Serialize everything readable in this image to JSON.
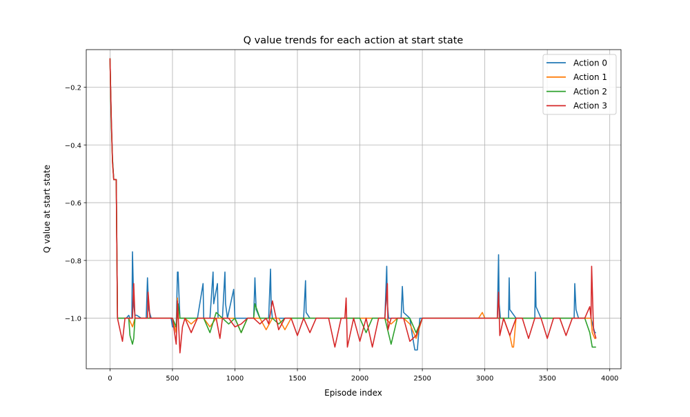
{
  "chart_data": {
    "type": "line",
    "title": "Q value trends for each action at start state",
    "xlabel": "Episode index",
    "ylabel": "Q value at start state",
    "xlim": [
      -190,
      4090
    ],
    "ylim": [
      -1.175,
      -0.07
    ],
    "xticks": [
      0,
      500,
      1000,
      1500,
      2000,
      2500,
      3000,
      3500,
      4000
    ],
    "xtick_labels": [
      "0",
      "500",
      "1000",
      "1500",
      "2000",
      "2500",
      "3000",
      "3500",
      "4000"
    ],
    "yticks": [
      -0.2,
      -0.4,
      -0.6,
      -0.8,
      -1.0
    ],
    "ytick_labels": [
      "−0.2",
      "−0.4",
      "−0.6",
      "−0.8",
      "−1.0"
    ],
    "grid": true,
    "legend_position": "top-right",
    "series": [
      {
        "name": "Action 0",
        "color": "#1f77b4",
        "x": [
          0,
          10,
          20,
          30,
          40,
          50,
          60,
          100,
          130,
          150,
          160,
          175,
          180,
          190,
          200,
          215,
          250,
          290,
          300,
          310,
          330,
          400,
          450,
          490,
          500,
          530,
          540,
          545,
          555,
          560,
          600,
          650,
          700,
          745,
          750,
          800,
          825,
          830,
          860,
          865,
          900,
          920,
          925,
          940,
          990,
          995,
          1000,
          1050,
          1100,
          1150,
          1160,
          1170,
          1200,
          1250,
          1270,
          1285,
          1290,
          1300,
          1350,
          1400,
          1450,
          1500,
          1550,
          1565,
          1570,
          1600,
          1650,
          1700,
          1750,
          1800,
          1850,
          1900,
          1950,
          2000,
          2050,
          2100,
          2150,
          2200,
          2215,
          2220,
          2230,
          2250,
          2300,
          2330,
          2340,
          2350,
          2400,
          2420,
          2440,
          2460,
          2480,
          2500,
          2550,
          2600,
          2650,
          2700,
          2750,
          2800,
          2850,
          2900,
          2950,
          3000,
          3050,
          3100,
          3110,
          3115,
          3125,
          3150,
          3190,
          3195,
          3200,
          3250,
          3300,
          3350,
          3400,
          3405,
          3410,
          3450,
          3500,
          3550,
          3600,
          3650,
          3700,
          3715,
          3720,
          3730,
          3750,
          3800,
          3850,
          3880,
          3890
        ],
        "values": [
          -0.1,
          -0.3,
          -0.45,
          -0.52,
          -0.52,
          -0.52,
          -1.0,
          -1.0,
          -1.0,
          -0.99,
          -1.0,
          -1.0,
          -0.77,
          -0.95,
          -0.99,
          -0.99,
          -1.0,
          -1.0,
          -0.86,
          -0.97,
          -1.0,
          -1.0,
          -1.0,
          -1.0,
          -1.03,
          -1.03,
          -0.84,
          -0.84,
          -0.95,
          -1.0,
          -1.0,
          -1.0,
          -1.0,
          -0.88,
          -1.0,
          -1.0,
          -0.84,
          -0.95,
          -0.88,
          -1.0,
          -1.0,
          -0.84,
          -0.95,
          -1.0,
          -0.9,
          -0.95,
          -1.0,
          -1.0,
          -1.0,
          -1.0,
          -0.86,
          -0.97,
          -1.0,
          -1.0,
          -1.0,
          -0.83,
          -0.96,
          -1.0,
          -1.0,
          -1.0,
          -1.0,
          -1.0,
          -1.0,
          -0.87,
          -0.98,
          -1.0,
          -1.0,
          -1.0,
          -1.0,
          -1.0,
          -1.0,
          -1.0,
          -1.0,
          -1.0,
          -1.0,
          -1.0,
          -1.0,
          -1.0,
          -0.82,
          -0.95,
          -1.0,
          -1.0,
          -1.0,
          -1.0,
          -0.89,
          -0.98,
          -1.0,
          -1.06,
          -1.11,
          -1.11,
          -1.0,
          -1.0,
          -1.0,
          -1.0,
          -1.0,
          -1.0,
          -1.0,
          -1.0,
          -1.0,
          -1.0,
          -1.0,
          -1.0,
          -1.0,
          -1.0,
          -0.78,
          -0.95,
          -1.0,
          -1.0,
          -1.0,
          -0.86,
          -0.97,
          -1.0,
          -1.0,
          -1.0,
          -1.0,
          -0.84,
          -0.96,
          -1.0,
          -1.0,
          -1.0,
          -1.0,
          -1.0,
          -1.0,
          -1.0,
          -0.88,
          -0.97,
          -1.0,
          -1.0,
          -1.0,
          -1.05,
          -1.05
        ]
      },
      {
        "name": "Action 1",
        "color": "#ff7f0e",
        "x": [
          0,
          10,
          20,
          30,
          40,
          50,
          60,
          100,
          150,
          180,
          200,
          220,
          250,
          300,
          350,
          400,
          450,
          500,
          530,
          540,
          545,
          560,
          600,
          650,
          700,
          750,
          800,
          850,
          900,
          950,
          1000,
          1050,
          1100,
          1150,
          1200,
          1250,
          1300,
          1350,
          1400,
          1450,
          1500,
          1550,
          1600,
          1650,
          1700,
          1750,
          1800,
          1850,
          1900,
          1950,
          2000,
          2050,
          2100,
          2150,
          2200,
          2250,
          2300,
          2350,
          2400,
          2450,
          2500,
          2550,
          2600,
          2650,
          2700,
          2750,
          2800,
          2850,
          2900,
          2950,
          2980,
          3000,
          3050,
          3100,
          3150,
          3200,
          3220,
          3230,
          3250,
          3300,
          3350,
          3400,
          3450,
          3500,
          3550,
          3600,
          3650,
          3700,
          3750,
          3800,
          3850,
          3860,
          3880,
          3890
        ],
        "values": [
          -0.1,
          -0.31,
          -0.46,
          -0.52,
          -0.52,
          -0.52,
          -1.0,
          -1.0,
          -1.0,
          -1.03,
          -1.0,
          -1.0,
          -1.0,
          -1.0,
          -1.0,
          -1.0,
          -1.0,
          -1.0,
          -1.05,
          -0.93,
          -1.0,
          -1.0,
          -1.0,
          -1.02,
          -1.0,
          -1.0,
          -1.03,
          -1.0,
          -1.0,
          -1.0,
          -1.0,
          -1.05,
          -1.0,
          -1.0,
          -1.0,
          -1.04,
          -1.0,
          -1.0,
          -1.04,
          -1.0,
          -1.0,
          -1.0,
          -1.0,
          -1.0,
          -1.0,
          -1.0,
          -1.0,
          -1.0,
          -1.0,
          -1.0,
          -1.0,
          -1.0,
          -1.0,
          -1.0,
          -1.0,
          -1.02,
          -1.0,
          -1.0,
          -1.02,
          -1.07,
          -1.0,
          -1.0,
          -1.0,
          -1.0,
          -1.0,
          -1.0,
          -1.0,
          -1.0,
          -1.0,
          -1.0,
          -0.98,
          -1.0,
          -1.0,
          -1.0,
          -1.0,
          -1.06,
          -1.1,
          -1.1,
          -1.0,
          -1.0,
          -1.0,
          -1.0,
          -1.0,
          -1.0,
          -1.0,
          -1.0,
          -1.0,
          -1.0,
          -1.0,
          -1.0,
          -1.0,
          -1.05,
          -1.07,
          -1.07
        ]
      },
      {
        "name": "Action 2",
        "color": "#2ca02c",
        "x": [
          0,
          10,
          20,
          30,
          40,
          50,
          60,
          100,
          150,
          160,
          180,
          190,
          200,
          220,
          250,
          300,
          350,
          400,
          450,
          500,
          530,
          545,
          560,
          600,
          650,
          700,
          750,
          800,
          850,
          900,
          950,
          1000,
          1050,
          1100,
          1150,
          1160,
          1200,
          1250,
          1300,
          1350,
          1400,
          1450,
          1500,
          1550,
          1600,
          1650,
          1700,
          1750,
          1800,
          1850,
          1900,
          1950,
          2000,
          2050,
          2100,
          2150,
          2200,
          2250,
          2300,
          2350,
          2400,
          2450,
          2500,
          2550,
          2600,
          2650,
          2700,
          2750,
          2800,
          2850,
          2900,
          2950,
          3000,
          3050,
          3100,
          3150,
          3200,
          3250,
          3300,
          3350,
          3400,
          3450,
          3500,
          3550,
          3600,
          3650,
          3700,
          3750,
          3800,
          3840,
          3860,
          3880,
          3890
        ],
        "values": [
          -0.1,
          -0.32,
          -0.45,
          -0.52,
          -0.52,
          -0.52,
          -1.0,
          -1.0,
          -1.0,
          -1.06,
          -1.09,
          -1.07,
          -1.0,
          -1.0,
          -1.0,
          -1.0,
          -1.0,
          -1.0,
          -1.0,
          -1.0,
          -1.03,
          -0.95,
          -1.0,
          -1.0,
          -1.0,
          -1.0,
          -1.0,
          -1.05,
          -0.98,
          -1.0,
          -1.02,
          -1.0,
          -1.05,
          -1.0,
          -1.0,
          -0.95,
          -1.0,
          -1.0,
          -1.0,
          -1.02,
          -1.0,
          -1.0,
          -1.0,
          -1.0,
          -1.0,
          -1.0,
          -1.0,
          -1.0,
          -1.0,
          -1.0,
          -1.0,
          -1.0,
          -1.0,
          -1.05,
          -1.0,
          -1.0,
          -1.0,
          -1.09,
          -1.0,
          -1.0,
          -1.0,
          -1.05,
          -1.0,
          -1.0,
          -1.0,
          -1.0,
          -1.0,
          -1.0,
          -1.0,
          -1.0,
          -1.0,
          -1.0,
          -1.0,
          -1.0,
          -1.0,
          -1.0,
          -1.0,
          -1.0,
          -1.0,
          -1.0,
          -1.0,
          -1.0,
          -1.0,
          -1.0,
          -1.0,
          -1.0,
          -1.0,
          -1.0,
          -1.0,
          -1.05,
          -1.1,
          -1.1,
          -1.1
        ]
      },
      {
        "name": "Action 3",
        "color": "#d62728",
        "x": [
          0,
          10,
          20,
          30,
          40,
          50,
          60,
          100,
          120,
          150,
          180,
          190,
          200,
          250,
          300,
          305,
          320,
          350,
          400,
          450,
          500,
          530,
          540,
          560,
          580,
          600,
          650,
          700,
          750,
          800,
          850,
          880,
          900,
          950,
          1000,
          1050,
          1100,
          1150,
          1200,
          1250,
          1270,
          1300,
          1350,
          1400,
          1450,
          1500,
          1550,
          1600,
          1650,
          1700,
          1750,
          1800,
          1850,
          1880,
          1890,
          1900,
          1950,
          2000,
          2050,
          2100,
          2150,
          2200,
          2220,
          2225,
          2250,
          2300,
          2350,
          2400,
          2450,
          2500,
          2550,
          2600,
          2650,
          2700,
          2750,
          2800,
          2850,
          2900,
          2950,
          3000,
          3050,
          3100,
          3110,
          3120,
          3150,
          3200,
          3250,
          3300,
          3350,
          3400,
          3450,
          3500,
          3550,
          3600,
          3650,
          3700,
          3750,
          3800,
          3840,
          3850,
          3855,
          3870,
          3890
        ],
        "values": [
          -0.1,
          -0.3,
          -0.46,
          -0.52,
          -0.52,
          -0.52,
          -1.0,
          -1.08,
          -1.0,
          -1.0,
          -1.0,
          -0.88,
          -1.0,
          -1.0,
          -1.0,
          -0.91,
          -1.0,
          -1.0,
          -1.0,
          -1.0,
          -1.0,
          -1.09,
          -0.94,
          -1.12,
          -1.03,
          -1.0,
          -1.05,
          -1.0,
          -1.0,
          -1.0,
          -1.0,
          -1.07,
          -1.0,
          -1.0,
          -1.03,
          -1.02,
          -1.0,
          -1.0,
          -1.02,
          -1.0,
          -1.02,
          -0.94,
          -1.04,
          -1.0,
          -1.0,
          -1.06,
          -1.0,
          -1.05,
          -1.0,
          -1.0,
          -1.0,
          -1.1,
          -1.0,
          -1.0,
          -0.93,
          -1.1,
          -1.0,
          -1.08,
          -1.0,
          -1.1,
          -1.0,
          -1.0,
          -0.88,
          -1.04,
          -1.0,
          -1.0,
          -1.0,
          -1.08,
          -1.06,
          -1.0,
          -1.0,
          -1.0,
          -1.0,
          -1.0,
          -1.0,
          -1.0,
          -1.0,
          -1.0,
          -1.0,
          -1.0,
          -1.0,
          -1.0,
          -0.91,
          -1.06,
          -1.0,
          -1.06,
          -1.0,
          -1.0,
          -1.07,
          -1.0,
          -1.0,
          -1.07,
          -1.0,
          -1.0,
          -1.06,
          -1.0,
          -1.0,
          -1.0,
          -0.96,
          -1.0,
          -0.82,
          -1.04,
          -1.07
        ]
      }
    ]
  }
}
